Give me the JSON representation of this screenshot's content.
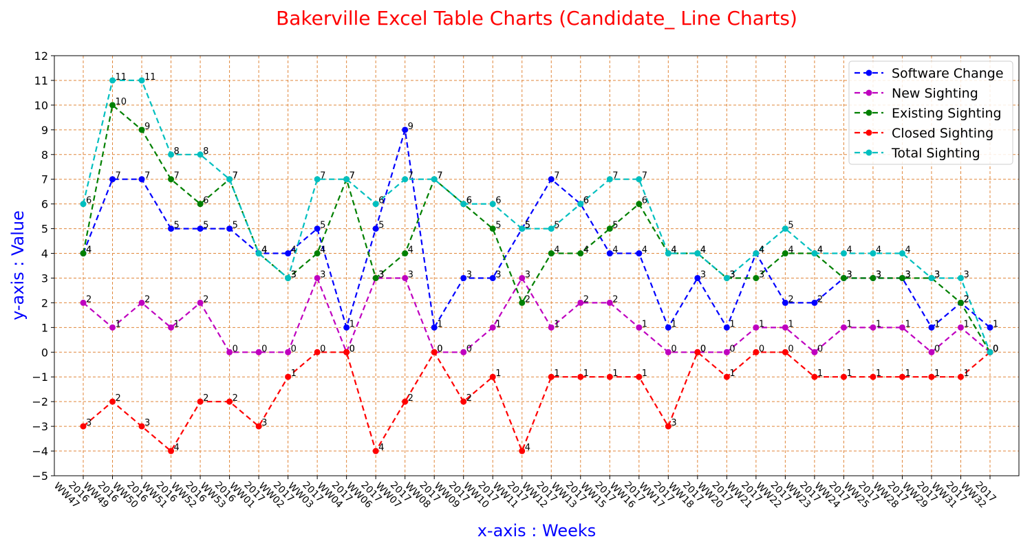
{
  "chart_data": {
    "type": "line",
    "title": "Bakerville Excel Table Charts (Candidate_ Line Charts)",
    "xlabel": "x-axis : Weeks",
    "ylabel": "y-axis : Value",
    "ylim": [
      -5,
      12
    ],
    "yticks": [
      -5,
      -4,
      -3,
      -2,
      -1,
      0,
      1,
      2,
      3,
      4,
      5,
      6,
      7,
      8,
      9,
      10,
      11,
      12
    ],
    "grid": true,
    "grid_color": "#e0863a",
    "legend_position": "top-right",
    "categories": [
      "2016 WW47",
      "2016 WW49",
      "2016 WW50",
      "2016 WW51",
      "2016 WW52",
      "2016 WW53",
      "2017 WW01",
      "2017 WW02",
      "2017 WW03",
      "2017 WW04",
      "2017 WW06",
      "2017 WW07",
      "2017 WW08",
      "2017 WW09",
      "2017 WW10",
      "2017 WW11",
      "2017 WW12",
      "2017 WW13",
      "2017 WW15",
      "2017 WW16",
      "2017 WW17",
      "2017 WW18",
      "2017 WW20",
      "2017 WW21",
      "2017 WW22",
      "2017 WW23",
      "2017 WW24",
      "2017 WW25",
      "2017 WW28",
      "2017 WW29",
      "2017 WW31",
      "2017 WW32"
    ],
    "series": [
      {
        "name": "Software Change",
        "color": "#0000ff",
        "values": [
          4,
          7,
          7,
          5,
          5,
          5,
          4,
          4,
          5,
          1,
          5,
          9,
          1,
          3,
          3,
          5,
          7,
          6,
          4,
          4,
          1,
          3,
          1,
          4,
          2,
          2,
          3,
          3,
          3,
          1,
          2,
          1
        ]
      },
      {
        "name": "New Sighting",
        "color": "#bf00bf",
        "values": [
          2,
          1,
          2,
          1,
          2,
          0,
          0,
          0,
          3,
          0,
          3,
          3,
          0,
          0,
          1,
          3,
          1,
          2,
          2,
          1,
          0,
          0,
          0,
          1,
          1,
          0,
          1,
          1,
          1,
          0,
          1,
          0
        ]
      },
      {
        "name": "Existing Sighting",
        "color": "#008000",
        "values": [
          4,
          10,
          9,
          7,
          6,
          7,
          4,
          3,
          4,
          7,
          3,
          4,
          7,
          6,
          5,
          2,
          4,
          4,
          5,
          6,
          4,
          4,
          3,
          3,
          4,
          4,
          3,
          3,
          3,
          3,
          2,
          0
        ]
      },
      {
        "name": "Closed Sighting",
        "color": "#ff0000",
        "values": [
          -3,
          -2,
          -3,
          -4,
          -2,
          -2,
          -3,
          -1,
          0,
          0,
          -4,
          -2,
          0,
          -2,
          -1,
          -4,
          -1,
          -1,
          -1,
          -1,
          -3,
          0,
          -1,
          0,
          0,
          -1,
          -1,
          -1,
          -1,
          -1,
          -1,
          0
        ]
      },
      {
        "name": "Total Sighting",
        "color": "#00bfbf",
        "values": [
          6,
          11,
          11,
          8,
          8,
          7,
          4,
          3,
          7,
          7,
          6,
          7,
          7,
          6,
          6,
          5,
          5,
          6,
          7,
          7,
          4,
          4,
          3,
          4,
          5,
          4,
          4,
          4,
          4,
          3,
          3,
          0
        ]
      }
    ]
  }
}
